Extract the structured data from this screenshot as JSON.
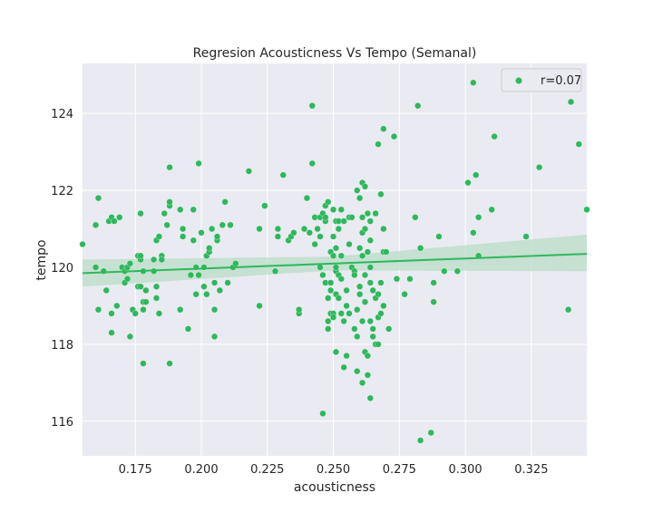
{
  "chart_data": {
    "type": "scatter",
    "title": "Regresion Acousticness Vs Tempo (Semanal)",
    "xlabel": "acousticness",
    "ylabel": "tempo",
    "xlim": [
      0.155,
      0.346
    ],
    "ylim": [
      115.1,
      125.3
    ],
    "xticks": [
      "0.175",
      "0.200",
      "0.225",
      "0.250",
      "0.275",
      "0.300",
      "0.325"
    ],
    "yticks": [
      "116",
      "118",
      "120",
      "122",
      "124"
    ],
    "grid": true,
    "legend": {
      "placement": "top-right",
      "entries": [
        "r=0.07"
      ]
    },
    "colors": {
      "points": "#2eb85c",
      "line": "#2eb85c",
      "band": "#b9dcc7",
      "background": "#eaeaf2",
      "grid": "#ffffff"
    },
    "regression": {
      "x": [
        0.155,
        0.346
      ],
      "y": [
        119.85,
        120.35
      ],
      "ci_lower": [
        119.5,
        119.9
      ],
      "ci_upper": [
        120.2,
        120.85
      ]
    },
    "points": [
      [
        0.155,
        120.6
      ],
      [
        0.16,
        120.0
      ],
      [
        0.16,
        121.1
      ],
      [
        0.161,
        118.9
      ],
      [
        0.161,
        121.8
      ],
      [
        0.163,
        119.9
      ],
      [
        0.164,
        119.4
      ],
      [
        0.165,
        121.2
      ],
      [
        0.166,
        121.3
      ],
      [
        0.166,
        118.8
      ],
      [
        0.166,
        118.3
      ],
      [
        0.167,
        121.2
      ],
      [
        0.168,
        119.0
      ],
      [
        0.169,
        121.3
      ],
      [
        0.17,
        120.0
      ],
      [
        0.171,
        119.9
      ],
      [
        0.171,
        119.6
      ],
      [
        0.172,
        120.0
      ],
      [
        0.172,
        119.7
      ],
      [
        0.173,
        120.1
      ],
      [
        0.173,
        118.2
      ],
      [
        0.174,
        118.9
      ],
      [
        0.175,
        118.8
      ],
      [
        0.176,
        120.3
      ],
      [
        0.176,
        119.5
      ],
      [
        0.177,
        120.2
      ],
      [
        0.177,
        119.5
      ],
      [
        0.177,
        121.4
      ],
      [
        0.177,
        120.3
      ],
      [
        0.178,
        119.1
      ],
      [
        0.178,
        118.9
      ],
      [
        0.178,
        117.5
      ],
      [
        0.178,
        119.9
      ],
      [
        0.179,
        119.1
      ],
      [
        0.179,
        119.4
      ],
      [
        0.182,
        120.2
      ],
      [
        0.182,
        119.9
      ],
      [
        0.183,
        119.5
      ],
      [
        0.183,
        119.2
      ],
      [
        0.183,
        120.7
      ],
      [
        0.184,
        120.8
      ],
      [
        0.184,
        118.8
      ],
      [
        0.185,
        120.3
      ],
      [
        0.185,
        120.2
      ],
      [
        0.186,
        121.4
      ],
      [
        0.187,
        121.1
      ],
      [
        0.188,
        121.6
      ],
      [
        0.188,
        117.5
      ],
      [
        0.188,
        121.7
      ],
      [
        0.188,
        122.6
      ],
      [
        0.192,
        118.9
      ],
      [
        0.192,
        121.5
      ],
      [
        0.193,
        120.8
      ],
      [
        0.193,
        121.0
      ],
      [
        0.195,
        118.4
      ],
      [
        0.196,
        119.8
      ],
      [
        0.197,
        121.5
      ],
      [
        0.197,
        120.7
      ],
      [
        0.198,
        119.3
      ],
      [
        0.198,
        120.0
      ],
      [
        0.199,
        119.8
      ],
      [
        0.199,
        122.7
      ],
      [
        0.2,
        120.9
      ],
      [
        0.201,
        119.5
      ],
      [
        0.201,
        120.0
      ],
      [
        0.202,
        120.3
      ],
      [
        0.202,
        119.3
      ],
      [
        0.203,
        120.4
      ],
      [
        0.203,
        120.5
      ],
      [
        0.204,
        121.0
      ],
      [
        0.205,
        119.6
      ],
      [
        0.205,
        118.9
      ],
      [
        0.205,
        118.2
      ],
      [
        0.206,
        120.7
      ],
      [
        0.206,
        120.8
      ],
      [
        0.207,
        119.4
      ],
      [
        0.208,
        121.1
      ],
      [
        0.209,
        121.7
      ],
      [
        0.21,
        119.6
      ],
      [
        0.211,
        121.1
      ],
      [
        0.212,
        120.0
      ],
      [
        0.213,
        120.1
      ],
      [
        0.218,
        122.5
      ],
      [
        0.222,
        121.0
      ],
      [
        0.222,
        119.0
      ],
      [
        0.224,
        121.6
      ],
      [
        0.224,
        121.6
      ],
      [
        0.228,
        119.9
      ],
      [
        0.229,
        121.0
      ],
      [
        0.229,
        120.8
      ],
      [
        0.231,
        122.4
      ],
      [
        0.233,
        120.7
      ],
      [
        0.234,
        120.8
      ],
      [
        0.235,
        120.9
      ],
      [
        0.237,
        118.8
      ],
      [
        0.237,
        118.9
      ],
      [
        0.239,
        121.0
      ],
      [
        0.24,
        121.8
      ],
      [
        0.241,
        120.9
      ],
      [
        0.242,
        122.7
      ],
      [
        0.242,
        124.2
      ],
      [
        0.243,
        121.3
      ],
      [
        0.243,
        120.6
      ],
      [
        0.244,
        121.0
      ],
      [
        0.245,
        120.8
      ],
      [
        0.245,
        121.3
      ],
      [
        0.245,
        120.0
      ],
      [
        0.246,
        119.8
      ],
      [
        0.246,
        116.2
      ],
      [
        0.246,
        121.4
      ],
      [
        0.247,
        121.6
      ],
      [
        0.247,
        121.2
      ],
      [
        0.247,
        121.3
      ],
      [
        0.247,
        119.6
      ],
      [
        0.248,
        118.6
      ],
      [
        0.248,
        118.4
      ],
      [
        0.248,
        121.7
      ],
      [
        0.248,
        119.2
      ],
      [
        0.249,
        119.4
      ],
      [
        0.249,
        120.4
      ],
      [
        0.249,
        119.6
      ],
      [
        0.249,
        118.8
      ],
      [
        0.25,
        120.8
      ],
      [
        0.25,
        120.3
      ],
      [
        0.25,
        118.8
      ],
      [
        0.25,
        118.7
      ],
      [
        0.25,
        121.5
      ],
      [
        0.251,
        121.2
      ],
      [
        0.251,
        120.5
      ],
      [
        0.251,
        119.3
      ],
      [
        0.251,
        119.9
      ],
      [
        0.251,
        120.0
      ],
      [
        0.251,
        117.8
      ],
      [
        0.252,
        121.0
      ],
      [
        0.252,
        119.8
      ],
      [
        0.252,
        121.2
      ],
      [
        0.252,
        119.2
      ],
      [
        0.253,
        120.3
      ],
      [
        0.253,
        121.5
      ],
      [
        0.253,
        118.8
      ],
      [
        0.253,
        119.7
      ],
      [
        0.254,
        117.4
      ],
      [
        0.254,
        118.6
      ],
      [
        0.254,
        121.2
      ],
      [
        0.255,
        117.7
      ],
      [
        0.255,
        119.4
      ],
      [
        0.255,
        119.0
      ],
      [
        0.256,
        118.8
      ],
      [
        0.256,
        120.6
      ],
      [
        0.256,
        121.3
      ],
      [
        0.257,
        121.3
      ],
      [
        0.257,
        120.0
      ],
      [
        0.258,
        119.9
      ],
      [
        0.258,
        118.4
      ],
      [
        0.258,
        119.8
      ],
      [
        0.259,
        117.3
      ],
      [
        0.259,
        118.9
      ],
      [
        0.259,
        118.2
      ],
      [
        0.259,
        122.0
      ],
      [
        0.26,
        121.8
      ],
      [
        0.26,
        120.5
      ],
      [
        0.26,
        119.5
      ],
      [
        0.26,
        119.3
      ],
      [
        0.261,
        122.2
      ],
      [
        0.261,
        121.3
      ],
      [
        0.261,
        120.9
      ],
      [
        0.261,
        120.3
      ],
      [
        0.261,
        118.6
      ],
      [
        0.261,
        117.0
      ],
      [
        0.262,
        122.1
      ],
      [
        0.262,
        121.0
      ],
      [
        0.262,
        119.8
      ],
      [
        0.262,
        119.1
      ],
      [
        0.262,
        117.8
      ],
      [
        0.263,
        121.4
      ],
      [
        0.263,
        120.4
      ],
      [
        0.263,
        117.7
      ],
      [
        0.263,
        117.2
      ],
      [
        0.264,
        121.2
      ],
      [
        0.264,
        120.0
      ],
      [
        0.264,
        118.6
      ],
      [
        0.264,
        120.7
      ],
      [
        0.264,
        119.6
      ],
      [
        0.264,
        116.6
      ],
      [
        0.265,
        119.4
      ],
      [
        0.265,
        118.4
      ],
      [
        0.265,
        118.2
      ],
      [
        0.266,
        121.4
      ],
      [
        0.266,
        119.2
      ],
      [
        0.266,
        118.0
      ],
      [
        0.267,
        123.2
      ],
      [
        0.267,
        118.7
      ],
      [
        0.267,
        118.0
      ],
      [
        0.267,
        119.3
      ],
      [
        0.268,
        119.6
      ],
      [
        0.268,
        118.8
      ],
      [
        0.268,
        121.9
      ],
      [
        0.269,
        119.0
      ],
      [
        0.269,
        120.4
      ],
      [
        0.269,
        121.0
      ],
      [
        0.269,
        123.6
      ],
      [
        0.27,
        120.4
      ],
      [
        0.271,
        118.4
      ],
      [
        0.273,
        123.4
      ],
      [
        0.274,
        119.7
      ],
      [
        0.277,
        119.3
      ],
      [
        0.279,
        119.7
      ],
      [
        0.281,
        121.3
      ],
      [
        0.282,
        124.2
      ],
      [
        0.283,
        115.5
      ],
      [
        0.283,
        120.5
      ],
      [
        0.287,
        115.7
      ],
      [
        0.288,
        119.1
      ],
      [
        0.288,
        119.6
      ],
      [
        0.29,
        120.8
      ],
      [
        0.292,
        119.9
      ],
      [
        0.297,
        119.9
      ],
      [
        0.301,
        122.2
      ],
      [
        0.303,
        124.8
      ],
      [
        0.303,
        120.9
      ],
      [
        0.304,
        122.4
      ],
      [
        0.305,
        120.3
      ],
      [
        0.305,
        121.3
      ],
      [
        0.31,
        121.5
      ],
      [
        0.311,
        123.4
      ],
      [
        0.323,
        120.8
      ],
      [
        0.328,
        122.6
      ],
      [
        0.339,
        118.9
      ],
      [
        0.34,
        124.3
      ],
      [
        0.343,
        123.2
      ],
      [
        0.346,
        121.5
      ]
    ]
  }
}
